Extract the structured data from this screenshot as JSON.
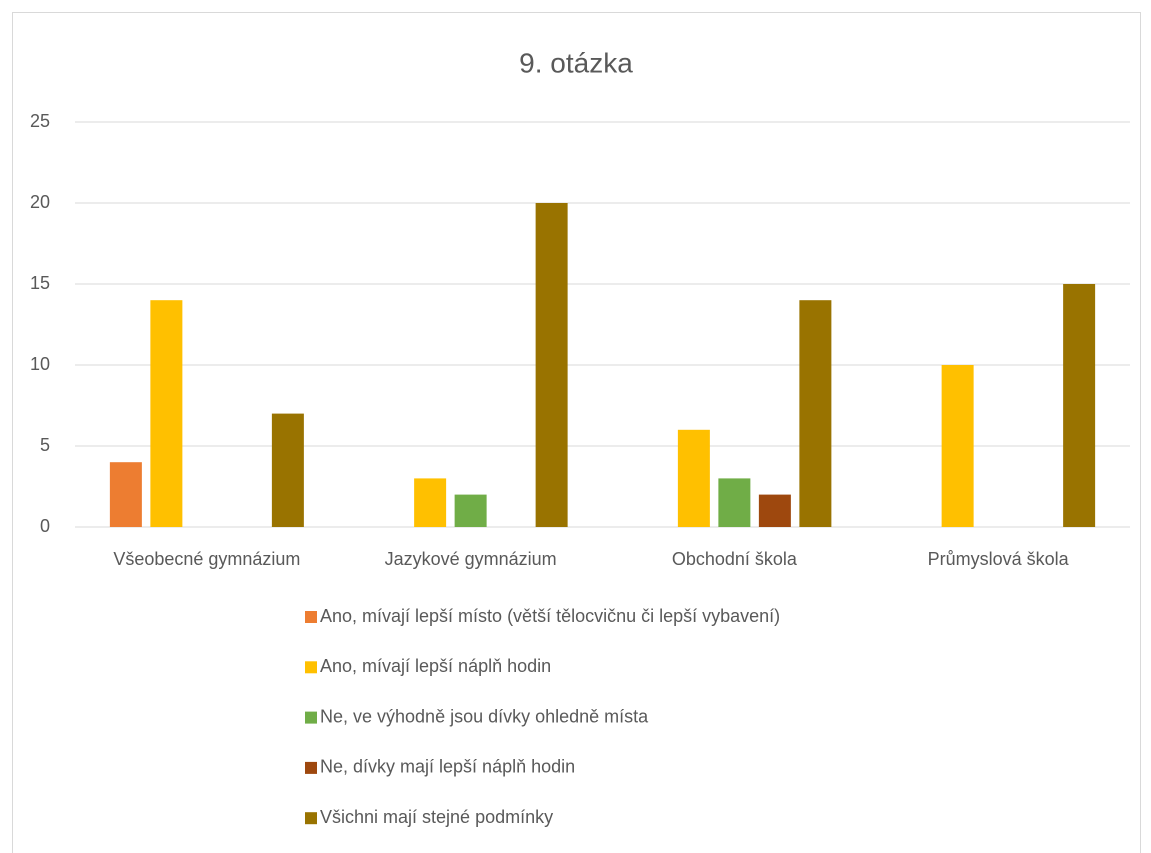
{
  "chart_data": {
    "type": "bar",
    "title": "9. otázka",
    "categories": [
      "Všeobecné gymnázium",
      "Jazykové gymnázium",
      "Obchodní škola",
      "Průmyslová škola"
    ],
    "series": [
      {
        "name": "Ano, mívají lepší místo (větší tělocvičnu či lepší vybavení)",
        "color": "#ED7D31",
        "values": [
          4,
          0,
          0,
          0
        ]
      },
      {
        "name": "Ano, mívají lepší náplň hodin",
        "color": "#FFC000",
        "values": [
          14,
          3,
          6,
          10
        ]
      },
      {
        "name": "Ne, ve výhodně jsou dívky ohledně místa",
        "color": "#70AD47",
        "values": [
          0,
          2,
          3,
          0
        ]
      },
      {
        "name": "Ne, dívky mají lepší náplň hodin",
        "color": "#9E480E",
        "values": [
          0,
          0,
          2,
          0
        ]
      },
      {
        "name": "Všichni mají stejné podmínky",
        "color": "#997300",
        "values": [
          7,
          20,
          14,
          15
        ]
      }
    ],
    "ylim": [
      0,
      25
    ],
    "yticks": [
      0,
      5,
      10,
      15,
      20,
      25
    ],
    "grid": true,
    "legend": "bottom"
  }
}
